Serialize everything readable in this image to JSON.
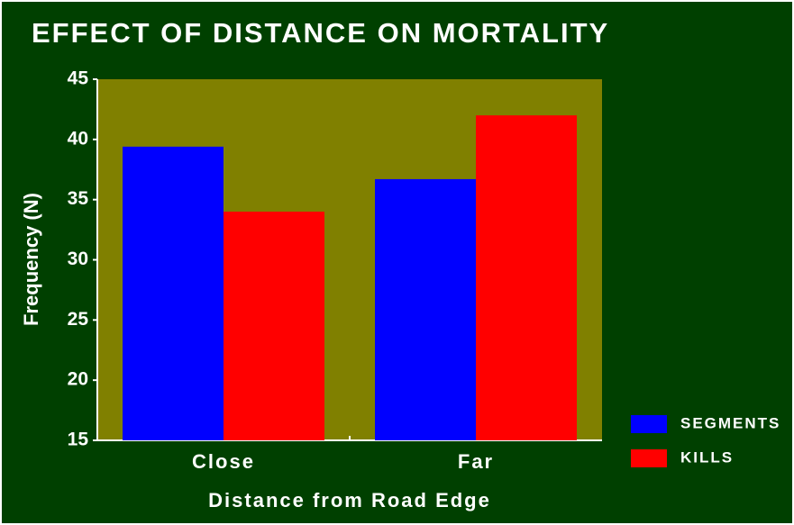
{
  "chart_data": {
    "type": "bar",
    "title": "EFFECT OF DISTANCE ON MORTALITY",
    "x_label": "Distance from Road Edge",
    "y_label": "Frequency (N)",
    "categories": [
      "Close",
      "Far"
    ],
    "series": [
      {
        "name": "SEGMENTS",
        "color": "#0000ff",
        "values": [
          39.4,
          36.7
        ]
      },
      {
        "name": "KILLS",
        "color": "#ff0000",
        "values": [
          34,
          42
        ]
      }
    ],
    "ylim": [
      15,
      45
    ],
    "yticks": [
      15,
      20,
      25,
      30,
      35,
      40,
      45
    ],
    "legend": "right",
    "grid": false
  }
}
